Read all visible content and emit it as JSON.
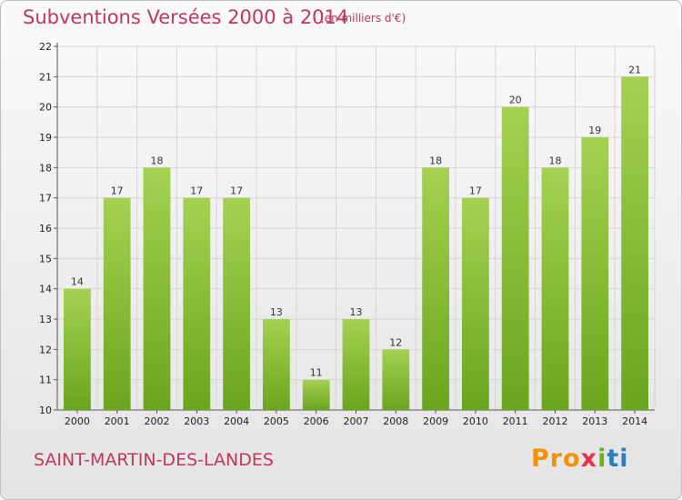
{
  "title": "Subventions Versées 2000 à 2014",
  "subtitle": "(en milliers d'€)",
  "place": "SAINT-MARTIN-DES-LANDES",
  "logo": {
    "p1": "Pro",
    "p2": "x",
    "p3": "i",
    "p4": "ti"
  },
  "colors": {
    "title": "#c0375a",
    "bar_light": "#a5d152",
    "bar_dark": "#6aa51e",
    "grid": "#d6d6d6"
  },
  "chart_data": {
    "type": "bar",
    "title": "Subventions Versées 2000 à 2014",
    "ylabel": "en milliers d'€",
    "categories": [
      "2000",
      "2001",
      "2002",
      "2003",
      "2004",
      "2005",
      "2006",
      "2007",
      "2008",
      "2009",
      "2010",
      "2011",
      "2012",
      "2013",
      "2014"
    ],
    "values": [
      14,
      17,
      18,
      17,
      17,
      13,
      11,
      13,
      12,
      18,
      17,
      20,
      18,
      19,
      21
    ],
    "ylim": [
      10,
      22
    ],
    "yticks": [
      10,
      11,
      12,
      13,
      14,
      15,
      16,
      17,
      18,
      19,
      20,
      21,
      22
    ],
    "grid": true
  }
}
